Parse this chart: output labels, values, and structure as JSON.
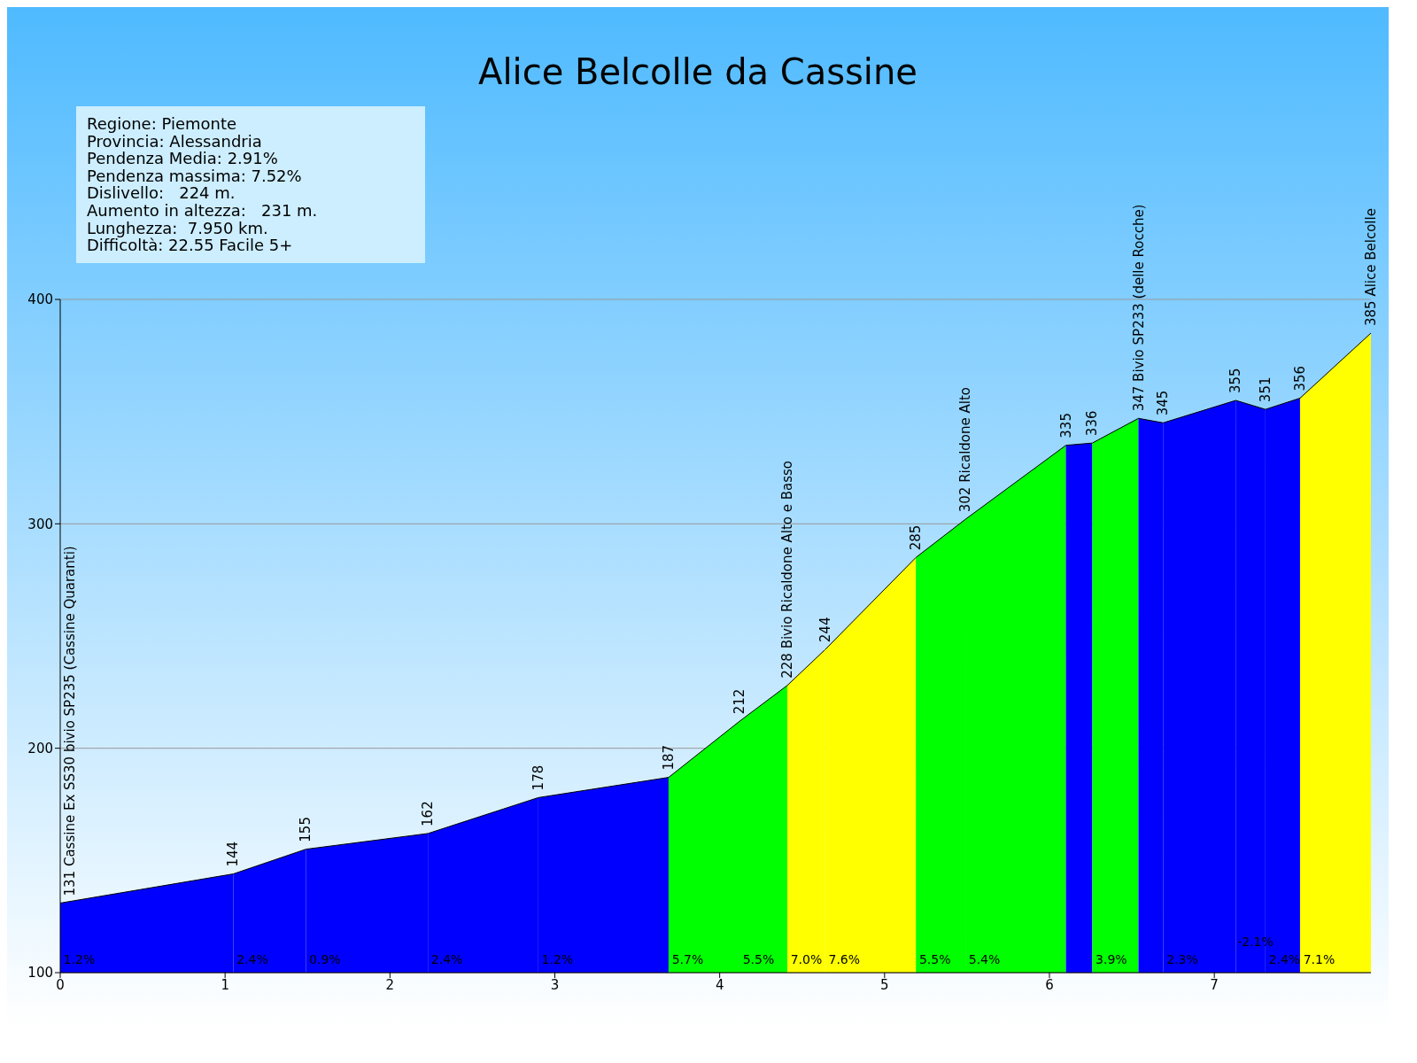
{
  "chart_data": {
    "type": "area",
    "title": "Alice Belcolle da Cassine",
    "series": [
      {
        "color": "#0000ff",
        "x": [
          0,
          1.05
        ],
        "values": [
          131,
          144
        ],
        "value_labels": [
          "131 Cassine Ex SS30 bivio SP235 (Cassine Quaranti)",
          "144"
        ]
      },
      {
        "color": "#0000ff",
        "x": [
          1.05,
          1.49
        ],
        "values": [
          144,
          155
        ],
        "value_labels": [
          null,
          "155"
        ]
      },
      {
        "color": "#0000ff",
        "x": [
          1.49,
          2.23
        ],
        "values": [
          155,
          162
        ],
        "value_labels": [
          null,
          "162"
        ]
      },
      {
        "color": "#0000ff",
        "x": [
          2.23,
          2.9
        ],
        "values": [
          162,
          178
        ],
        "value_labels": [
          null,
          "178"
        ]
      },
      {
        "color": "#0000ff",
        "x": [
          2.9,
          3.69
        ],
        "values": [
          178,
          187
        ],
        "value_labels": [
          null,
          "187"
        ]
      },
      {
        "color": "#00ff00",
        "x": [
          3.69,
          4.12
        ],
        "values": [
          187,
          212
        ],
        "value_labels": [
          null,
          "212"
        ]
      },
      {
        "color": "#00ff00",
        "x": [
          4.12,
          4.41
        ],
        "values": [
          212,
          228
        ],
        "value_labels": [
          null,
          "228 Bivio Ricaldone Alto e Basso"
        ]
      },
      {
        "color": "#ffff00",
        "x": [
          4.41,
          4.64
        ],
        "values": [
          228,
          244
        ],
        "value_labels": [
          null,
          "244"
        ]
      },
      {
        "color": "#ffff00",
        "x": [
          4.64,
          5.19
        ],
        "values": [
          244,
          285
        ],
        "value_labels": [
          null,
          "285"
        ]
      },
      {
        "color": "#00ff00",
        "x": [
          5.19,
          5.49
        ],
        "values": [
          285,
          302
        ],
        "value_labels": [
          null,
          "302 Ricaldone Alto"
        ]
      },
      {
        "color": "#00ff00",
        "x": [
          5.49,
          6.1
        ],
        "values": [
          302,
          335
        ],
        "value_labels": [
          null,
          "335"
        ]
      },
      {
        "color": "#0000ff",
        "x": [
          6.1,
          6.26
        ],
        "values": [
          335,
          336
        ],
        "value_labels": [
          null,
          "336"
        ]
      },
      {
        "color": "#00ff00",
        "x": [
          6.26,
          6.54
        ],
        "values": [
          336,
          347
        ],
        "value_labels": [
          null,
          "347 Bivio SP233 (delle Rocche)"
        ]
      },
      {
        "color": "#0000ff",
        "x": [
          6.54,
          6.69
        ],
        "values": [
          347,
          345
        ],
        "value_labels": [
          null,
          "345"
        ]
      },
      {
        "color": "#0000ff",
        "x": [
          6.69,
          7.13
        ],
        "values": [
          345,
          355
        ],
        "value_labels": [
          null,
          "355"
        ]
      },
      {
        "color": "#0000ff",
        "x": [
          7.13,
          7.31
        ],
        "values": [
          355,
          351
        ],
        "value_labels": [
          null,
          "351"
        ]
      },
      {
        "color": "#0000ff",
        "x": [
          7.31,
          7.52
        ],
        "values": [
          351,
          356
        ],
        "value_labels": [
          null,
          "356"
        ]
      },
      {
        "color": "#ffff00",
        "x": [
          7.52,
          7.95
        ],
        "values": [
          356,
          385
        ],
        "value_labels": [
          null,
          "385 Alice Belcolle"
        ]
      }
    ],
    "xlim": [
      0,
      7.95
    ],
    "xticks": [
      0,
      1,
      2,
      3,
      4,
      5,
      6,
      7
    ],
    "ylim": [
      100,
      400
    ],
    "yticks": [
      100,
      200,
      300,
      400
    ],
    "grid": "y",
    "annotations": [
      "Regione: Piemonte",
      "Provincia: Alessandria",
      "Pendenza Media: 2.91%",
      "Pendenza massima: 7.52%",
      "Dislivello:   224 m.",
      "Aumento in altezza:   231 m.",
      "Lunghezza:  7.950 km.",
      "Difficoltà: 22.55 Facile 5+",
      {
        "text": "1.2%",
        "x": 0.02,
        "y": 106
      },
      {
        "text": "2.4%",
        "x": 1.07,
        "y": 106
      },
      {
        "text": "0.9%",
        "x": 1.51,
        "y": 106
      },
      {
        "text": "2.4%",
        "x": 2.25,
        "y": 106
      },
      {
        "text": "1.2%",
        "x": 2.92,
        "y": 106
      },
      {
        "text": "5.7%",
        "x": 3.71,
        "y": 106
      },
      {
        "text": "5.5%",
        "x": 4.14,
        "y": 106
      },
      {
        "text": "7.0%",
        "x": 4.43,
        "y": 106
      },
      {
        "text": "7.6%",
        "x": 4.66,
        "y": 106
      },
      {
        "text": "5.5%",
        "x": 5.21,
        "y": 106
      },
      {
        "text": "5.4%",
        "x": 5.51,
        "y": 106
      },
      {
        "text": "3.9%",
        "x": 6.28,
        "y": 106
      },
      {
        "text": "2.3%",
        "x": 6.71,
        "y": 106
      },
      {
        "text": "-2.1%",
        "x": 7.14,
        "y": 114
      },
      {
        "text": "2.4%",
        "x": 7.33,
        "y": 106
      },
      {
        "text": "7.1%",
        "x": 7.54,
        "y": 106
      }
    ]
  }
}
